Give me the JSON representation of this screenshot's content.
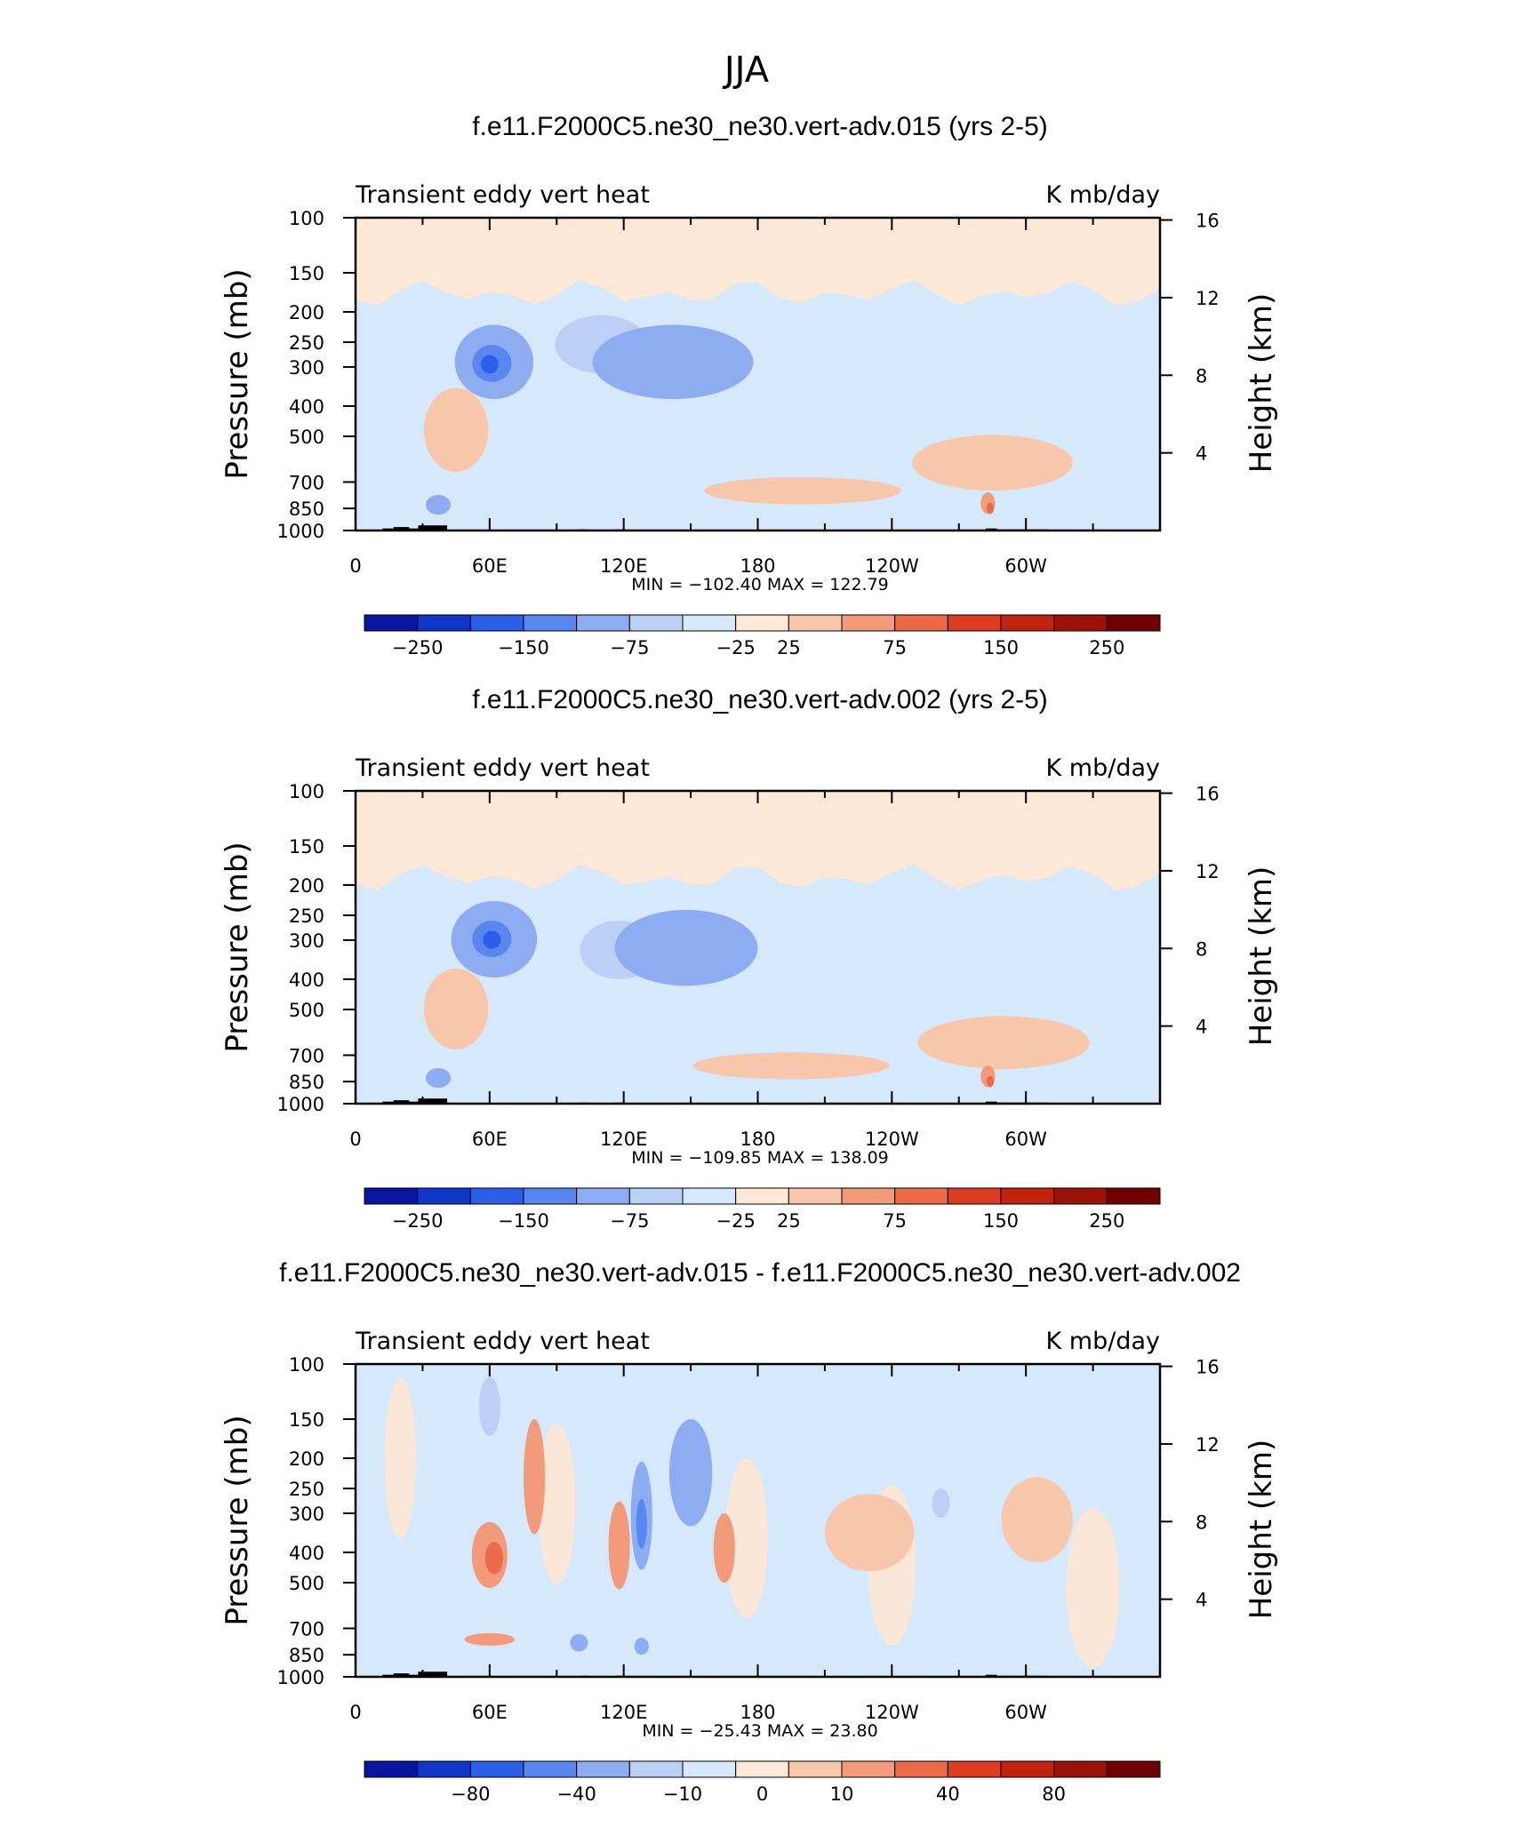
{
  "figure_title": "JJA",
  "colors": {
    "topo": "#000000",
    "pos_bg": "#fde7d6",
    "neg_bg": "#d6e8fb"
  },
  "chart_data": [
    {
      "type": "heatmap",
      "title": "f.e11.F2000C5.ne30_ne30.vert-adv.015 (yrs 2-5)",
      "left_label": "Transient eddy vert heat",
      "right_label": "K mb/day",
      "ylabel": "Pressure (mb)",
      "ylabel_right": "Height (km)",
      "x_ticks": [
        "0",
        "60E",
        "120E",
        "180",
        "120W",
        "60W"
      ],
      "y_ticks": [
        "100",
        "150",
        "200",
        "250",
        "300",
        "400",
        "500",
        "700",
        "850",
        "1000"
      ],
      "y_ticks_right": [
        "16",
        "12",
        "8",
        "4"
      ],
      "stats": "MIN = −102.40   MAX = 122.79",
      "colorbar": {
        "labels": [
          "−250",
          "−150",
          "−75",
          "−25",
          "25",
          "75",
          "150",
          "250"
        ],
        "colors": [
          "#08169e",
          "#1036c6",
          "#2c5ee6",
          "#5a86f0",
          "#8eacf2",
          "#bcd0f6",
          "#d6e8fb",
          "#fde7d6",
          "#f8c6aa",
          "#f29a7a",
          "#ea6a4a",
          "#dc3d22",
          "#c02410",
          "#9a1208",
          "#6e0202"
        ]
      },
      "features": [
        {
          "kind": "neg",
          "level": 1,
          "lon": 110,
          "p": 260,
          "lon_w": 26,
          "p_w": 110
        },
        {
          "kind": "neg",
          "level": 2,
          "lon": 62,
          "p": 300,
          "lon_w": 22,
          "p_w": 160
        },
        {
          "kind": "neg",
          "level": 3,
          "lon": 61,
          "p": 295,
          "lon_w": 11,
          "p_w": 80
        },
        {
          "kind": "neg",
          "level": 4,
          "lon": 60,
          "p": 295,
          "lon_w": 5,
          "p_w": 40
        },
        {
          "kind": "neg",
          "level": 2,
          "lon": 142,
          "p": 300,
          "lon_w": 45,
          "p_w": 160
        },
        {
          "kind": "neg",
          "level": 2,
          "lon": 37,
          "p": 830,
          "lon_w": 7,
          "p_w": 120
        },
        {
          "kind": "pos",
          "level": 1,
          "lon": 200,
          "p": 750,
          "lon_w": 55,
          "p_w": 150
        },
        {
          "kind": "pos",
          "level": 1,
          "lon": 285,
          "p": 620,
          "lon_w": 45,
          "p_w": 250
        },
        {
          "kind": "pos",
          "level": 1,
          "lon": 45,
          "p": 500,
          "lon_w": 18,
          "p_w": 300
        },
        {
          "kind": "pos",
          "level": 2,
          "lon": 283,
          "p": 820,
          "lon_w": 4,
          "p_w": 130
        },
        {
          "kind": "pos",
          "level": 3,
          "lon": 284,
          "p": 850,
          "lon_w": 2,
          "p_w": 70
        }
      ]
    },
    {
      "type": "heatmap",
      "title": "f.e11.F2000C5.ne30_ne30.vert-adv.002 (yrs 2-5)",
      "left_label": "Transient eddy vert heat",
      "right_label": "K mb/day",
      "ylabel": "Pressure (mb)",
      "ylabel_right": "Height (km)",
      "x_ticks": [
        "0",
        "60E",
        "120E",
        "180",
        "120W",
        "60W"
      ],
      "y_ticks": [
        "100",
        "150",
        "200",
        "250",
        "300",
        "400",
        "500",
        "700",
        "850",
        "1000"
      ],
      "y_ticks_right": [
        "16",
        "12",
        "8",
        "4"
      ],
      "stats": "MIN = −109.85   MAX = 138.09",
      "colorbar": {
        "labels": [
          "−250",
          "−150",
          "−75",
          "−25",
          "25",
          "75",
          "150",
          "250"
        ],
        "colors": [
          "#08169e",
          "#1036c6",
          "#2c5ee6",
          "#5a86f0",
          "#8eacf2",
          "#bcd0f6",
          "#d6e8fb",
          "#fde7d6",
          "#f8c6aa",
          "#f29a7a",
          "#ea6a4a",
          "#dc3d22",
          "#c02410",
          "#9a1208",
          "#6e0202"
        ]
      },
      "features": [
        {
          "kind": "neg",
          "level": 1,
          "lon": 118,
          "p": 330,
          "lon_w": 22,
          "p_w": 140
        },
        {
          "kind": "neg",
          "level": 2,
          "lon": 62,
          "p": 310,
          "lon_w": 24,
          "p_w": 170
        },
        {
          "kind": "neg",
          "level": 3,
          "lon": 61,
          "p": 300,
          "lon_w": 11,
          "p_w": 80
        },
        {
          "kind": "neg",
          "level": 4,
          "lon": 61,
          "p": 300,
          "lon_w": 5,
          "p_w": 40
        },
        {
          "kind": "neg",
          "level": 2,
          "lon": 148,
          "p": 330,
          "lon_w": 40,
          "p_w": 180
        },
        {
          "kind": "neg",
          "level": 2,
          "lon": 37,
          "p": 830,
          "lon_w": 7,
          "p_w": 120
        },
        {
          "kind": "pos",
          "level": 1,
          "lon": 195,
          "p": 760,
          "lon_w": 55,
          "p_w": 150
        },
        {
          "kind": "pos",
          "level": 1,
          "lon": 290,
          "p": 650,
          "lon_w": 48,
          "p_w": 250
        },
        {
          "kind": "pos",
          "level": 1,
          "lon": 45,
          "p": 520,
          "lon_w": 18,
          "p_w": 300
        },
        {
          "kind": "pos",
          "level": 2,
          "lon": 283,
          "p": 820,
          "lon_w": 4,
          "p_w": 130
        },
        {
          "kind": "pos",
          "level": 3,
          "lon": 284,
          "p": 850,
          "lon_w": 2,
          "p_w": 70
        }
      ]
    },
    {
      "type": "heatmap",
      "title": "f.e11.F2000C5.ne30_ne30.vert-adv.015 - f.e11.F2000C5.ne30_ne30.vert-adv.002",
      "left_label": "Transient eddy vert heat",
      "right_label": "K mb/day",
      "ylabel": "Pressure (mb)",
      "ylabel_right": "Height (km)",
      "x_ticks": [
        "0",
        "60E",
        "120E",
        "180",
        "120W",
        "60W"
      ],
      "y_ticks": [
        "100",
        "150",
        "200",
        "250",
        "300",
        "400",
        "500",
        "700",
        "850",
        "1000"
      ],
      "y_ticks_right": [
        "16",
        "12",
        "8",
        "4"
      ],
      "stats": "MIN = −25.43   MAX =   23.80",
      "colorbar": {
        "labels": [
          "−80",
          "−40",
          "−10",
          "0",
          "10",
          "40",
          "80"
        ],
        "colors": [
          "#08169e",
          "#1036c6",
          "#2c5ee6",
          "#5a86f0",
          "#8eacf2",
          "#bcd0f6",
          "#d6e8fb",
          "#fde7d6",
          "#f8c6aa",
          "#f29a7a",
          "#ea6a4a",
          "#dc3d22",
          "#c02410",
          "#9a1208",
          "#6e0202"
        ]
      },
      "features": [
        {
          "kind": "pos",
          "level": 2,
          "lon": 60,
          "p": 420,
          "lon_w": 10,
          "p_w": 200
        },
        {
          "kind": "pos",
          "level": 3,
          "lon": 62,
          "p": 420,
          "lon_w": 5,
          "p_w": 100
        },
        {
          "kind": "pos",
          "level": 2,
          "lon": 80,
          "p": 250,
          "lon_w": 6,
          "p_w": 200
        },
        {
          "kind": "pos",
          "level": 2,
          "lon": 118,
          "p": 400,
          "lon_w": 6,
          "p_w": 250
        },
        {
          "kind": "pos",
          "level": 2,
          "lon": 165,
          "p": 400,
          "lon_w": 6,
          "p_w": 200
        },
        {
          "kind": "pos",
          "level": 2,
          "lon": 60,
          "p": 760,
          "lon_w": 14,
          "p_w": 70
        },
        {
          "kind": "pos",
          "level": 1,
          "lon": 230,
          "p": 360,
          "lon_w": 25,
          "p_w": 200
        },
        {
          "kind": "pos",
          "level": 1,
          "lon": 305,
          "p": 330,
          "lon_w": 20,
          "p_w": 200
        },
        {
          "kind": "neg",
          "level": 2,
          "lon": 128,
          "p": 330,
          "lon_w": 6,
          "p_w": 250
        },
        {
          "kind": "neg",
          "level": 3,
          "lon": 128,
          "p": 330,
          "lon_w": 3,
          "p_w": 120
        },
        {
          "kind": "neg",
          "level": 2,
          "lon": 150,
          "p": 240,
          "lon_w": 12,
          "p_w": 180
        },
        {
          "kind": "neg",
          "level": 2,
          "lon": 100,
          "p": 780,
          "lon_w": 5,
          "p_w": 100
        },
        {
          "kind": "neg",
          "level": 2,
          "lon": 128,
          "p": 800,
          "lon_w": 4,
          "p_w": 100
        },
        {
          "kind": "neg",
          "level": 1,
          "lon": 60,
          "p": 140,
          "lon_w": 6,
          "p_w": 60
        },
        {
          "kind": "neg",
          "level": 1,
          "lon": 262,
          "p": 280,
          "lon_w": 5,
          "p_w": 60
        }
      ]
    }
  ]
}
